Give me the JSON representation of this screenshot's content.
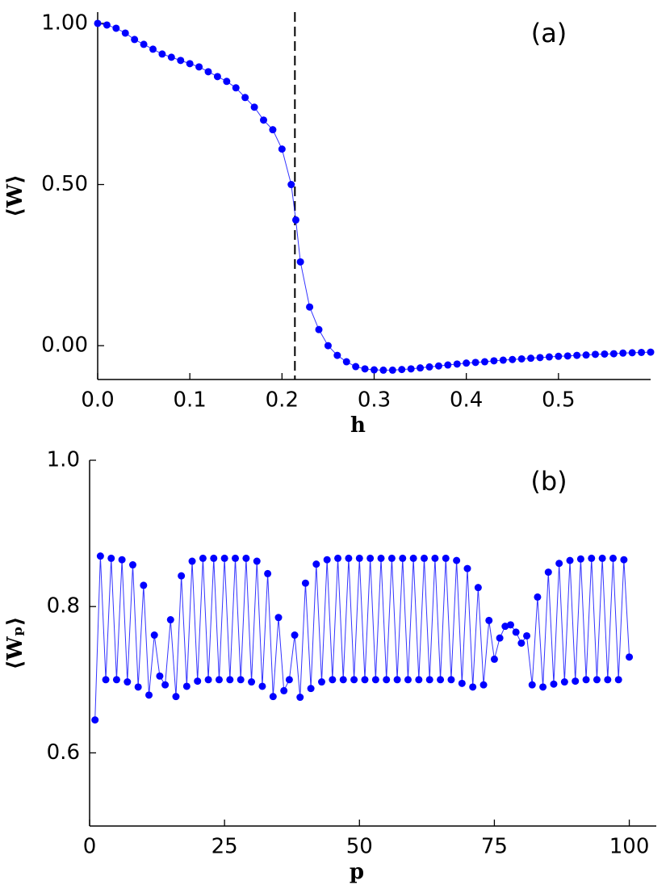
{
  "chart_data": [
    {
      "type": "line",
      "annotation": "(a)",
      "xlabel": "h",
      "ylabel": "⟨W⟩",
      "color": "#0000ff",
      "xlim": [
        0,
        0.6
      ],
      "ylim": [
        -0.105,
        1.035
      ],
      "xticks": [
        {
          "value": 0,
          "label": "0.0"
        },
        0.1,
        0.2,
        0.3,
        0.4,
        0.5
      ],
      "yticks": [
        {
          "value": 0,
          "label": "0.00"
        },
        {
          "value": 0.5,
          "label": "0.50"
        },
        {
          "value": 1,
          "label": "1.00"
        }
      ],
      "vline": 0.214,
      "x": [
        0,
        0.01,
        0.02,
        0.03,
        0.04,
        0.05,
        0.06,
        0.07,
        0.08,
        0.09,
        0.1,
        0.11,
        0.12,
        0.13,
        0.14,
        0.15,
        0.16,
        0.17,
        0.18,
        0.19,
        0.2,
        0.21,
        0.215,
        0.22,
        0.23,
        0.24,
        0.25,
        0.26,
        0.27,
        0.28,
        0.29,
        0.3,
        0.31,
        0.32,
        0.33,
        0.34,
        0.35,
        0.36,
        0.37,
        0.38,
        0.39,
        0.4,
        0.41,
        0.42,
        0.43,
        0.44,
        0.45,
        0.46,
        0.47,
        0.48,
        0.49,
        0.5,
        0.51,
        0.52,
        0.53,
        0.54,
        0.55,
        0.56,
        0.57,
        0.58,
        0.59,
        0.6
      ],
      "values": [
        1.0,
        0.995,
        0.985,
        0.97,
        0.95,
        0.935,
        0.92,
        0.905,
        0.895,
        0.885,
        0.875,
        0.865,
        0.85,
        0.835,
        0.82,
        0.8,
        0.77,
        0.74,
        0.7,
        0.67,
        0.61,
        0.5,
        0.39,
        0.26,
        0.12,
        0.05,
        0.0,
        -0.03,
        -0.05,
        -0.065,
        -0.072,
        -0.075,
        -0.076,
        -0.076,
        -0.074,
        -0.072,
        -0.069,
        -0.066,
        -0.063,
        -0.06,
        -0.057,
        -0.054,
        -0.052,
        -0.05,
        -0.047,
        -0.045,
        -0.043,
        -0.041,
        -0.039,
        -0.037,
        -0.035,
        -0.033,
        -0.032,
        -0.03,
        -0.029,
        -0.027,
        -0.026,
        -0.025,
        -0.023,
        -0.022,
        -0.021,
        -0.02
      ]
    },
    {
      "type": "line",
      "annotation": "(b)",
      "xlabel": "p",
      "ylabel": "⟨Wₚ⟩",
      "color": "#0000ff",
      "xlim": [
        0,
        105
      ],
      "ylim": [
        0.5,
        1.0
      ],
      "xticks": [
        0,
        25,
        50,
        75,
        100
      ],
      "yticks": [
        0.6,
        0.8,
        {
          "value": 1,
          "label": "1.0"
        }
      ],
      "x": [
        1,
        2,
        3,
        4,
        5,
        6,
        7,
        8,
        9,
        10,
        11,
        12,
        13,
        14,
        15,
        16,
        17,
        18,
        19,
        20,
        21,
        22,
        23,
        24,
        25,
        26,
        27,
        28,
        29,
        30,
        31,
        32,
        33,
        34,
        35,
        36,
        37,
        38,
        39,
        40,
        41,
        42,
        43,
        44,
        45,
        46,
        47,
        48,
        49,
        50,
        51,
        52,
        53,
        54,
        55,
        56,
        57,
        58,
        59,
        60,
        61,
        62,
        63,
        64,
        65,
        66,
        67,
        68,
        69,
        70,
        71,
        72,
        73,
        74,
        75,
        76,
        77,
        78,
        79,
        80,
        81,
        82,
        83,
        84,
        85,
        86,
        87,
        88,
        89,
        90,
        91,
        92,
        93,
        94,
        95,
        96,
        97,
        98,
        99,
        100
      ],
      "values": [
        0.645,
        0.869,
        0.7,
        0.866,
        0.7,
        0.864,
        0.697,
        0.857,
        0.69,
        0.829,
        0.679,
        0.761,
        0.705,
        0.693,
        0.782,
        0.677,
        0.842,
        0.691,
        0.862,
        0.698,
        0.866,
        0.7,
        0.866,
        0.7,
        0.866,
        0.7,
        0.866,
        0.7,
        0.866,
        0.697,
        0.862,
        0.691,
        0.845,
        0.677,
        0.785,
        0.685,
        0.7,
        0.761,
        0.676,
        0.832,
        0.688,
        0.858,
        0.697,
        0.864,
        0.7,
        0.866,
        0.7,
        0.866,
        0.7,
        0.866,
        0.7,
        0.866,
        0.7,
        0.866,
        0.7,
        0.866,
        0.7,
        0.866,
        0.7,
        0.866,
        0.7,
        0.866,
        0.7,
        0.866,
        0.7,
        0.866,
        0.7,
        0.863,
        0.695,
        0.852,
        0.69,
        0.826,
        0.693,
        0.781,
        0.728,
        0.757,
        0.773,
        0.775,
        0.765,
        0.75,
        0.76,
        0.693,
        0.813,
        0.69,
        0.847,
        0.694,
        0.859,
        0.697,
        0.863,
        0.698,
        0.865,
        0.7,
        0.866,
        0.7,
        0.866,
        0.7,
        0.866,
        0.7,
        0.864,
        0.731
      ]
    }
  ]
}
